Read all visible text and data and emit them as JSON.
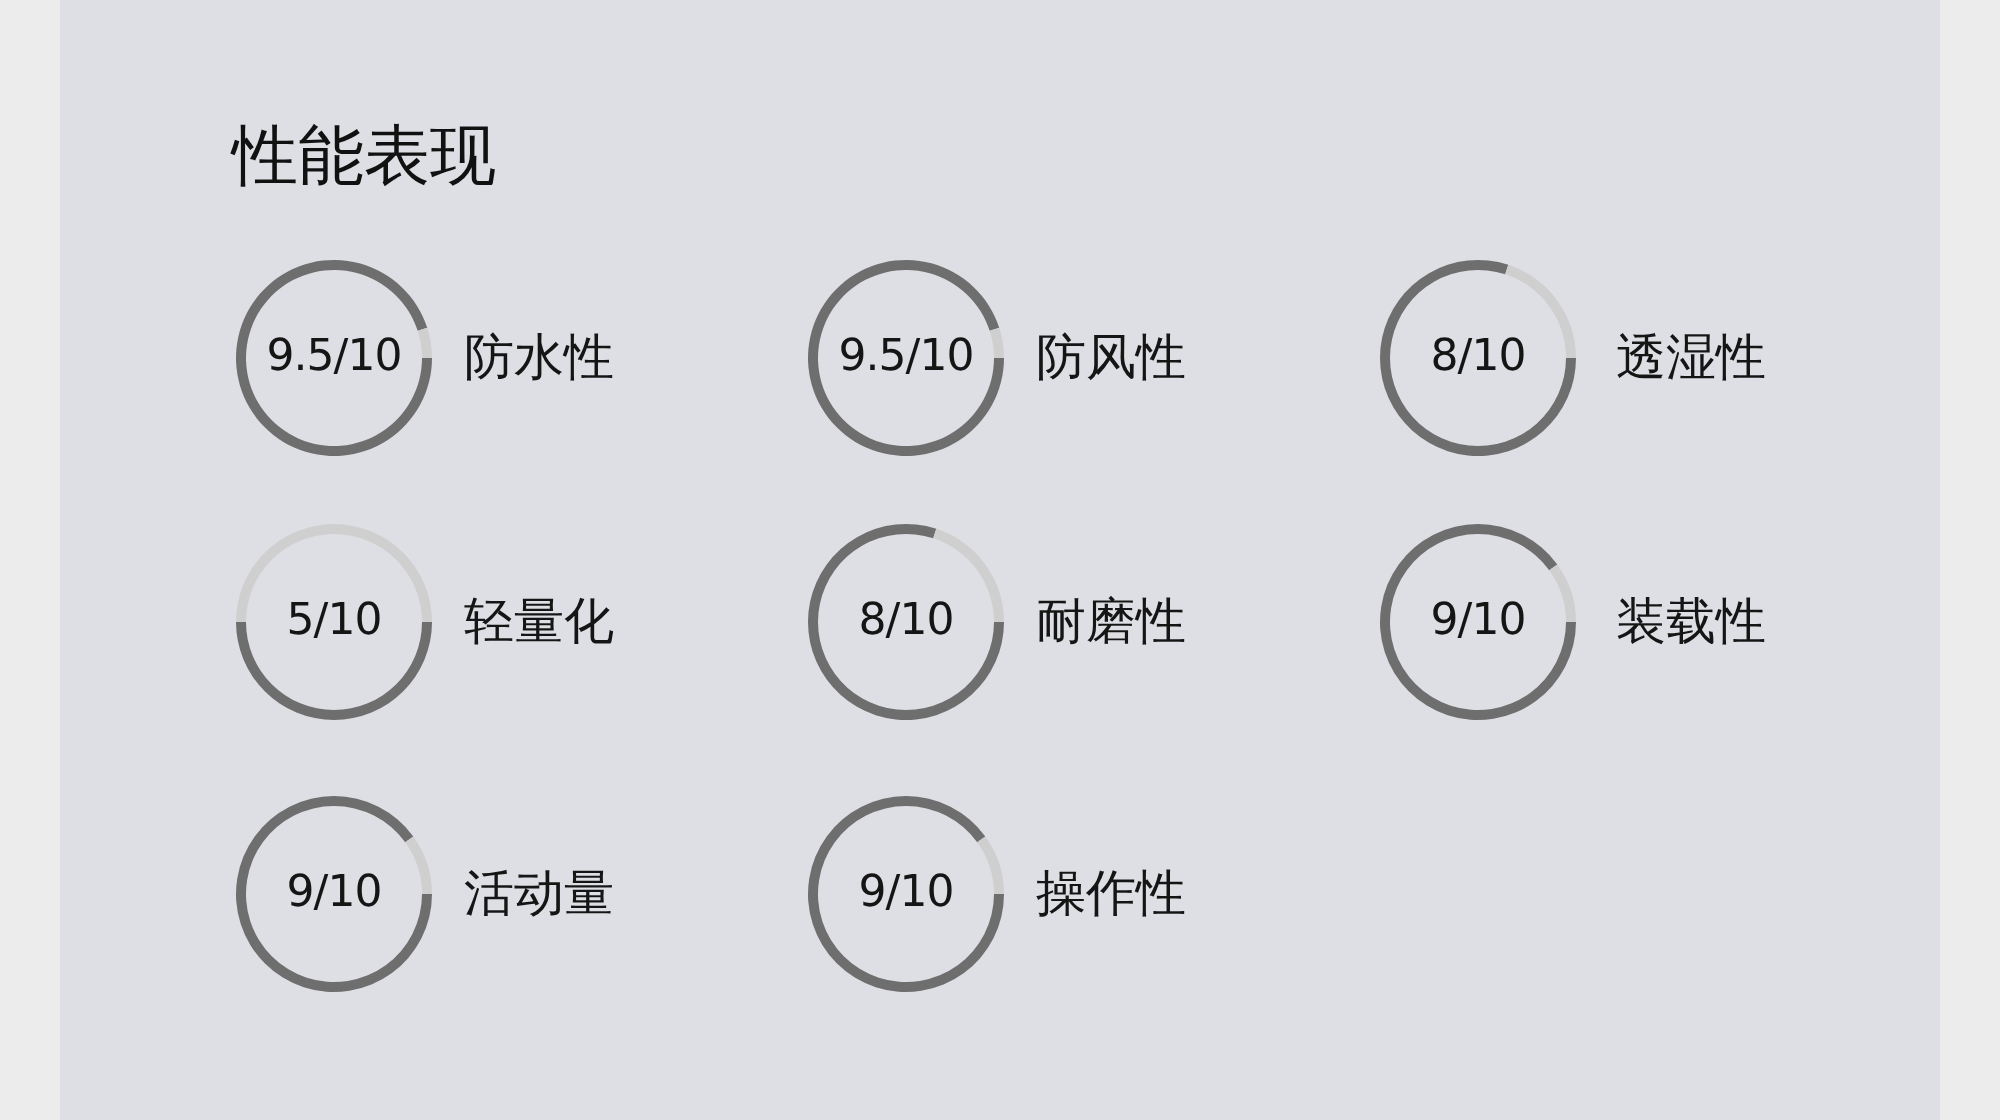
{
  "chart_data": [
    {
      "type": "other",
      "title": "性能表现"
    },
    {
      "type": "donut",
      "title": "防水性",
      "categories": [
        null,
        null
      ],
      "values": [
        95,
        5
      ],
      "colors": [
        "#6e6e6e",
        "#cfcfcf"
      ],
      "annotations": [
        "9.5/10"
      ]
    },
    {
      "type": "donut",
      "title": "防风性",
      "categories": [
        null,
        null
      ],
      "values": [
        95,
        5
      ],
      "colors": [
        "#6e6e6e",
        "#cfcfcf"
      ],
      "annotations": [
        "9.5/10"
      ]
    },
    {
      "type": "donut",
      "title": "透湿性",
      "categories": [
        null,
        null
      ],
      "values": [
        80,
        20
      ],
      "colors": [
        "#6e6e6e",
        "#cfcfcf"
      ],
      "annotations": [
        "8/10"
      ]
    },
    {
      "type": "donut",
      "title": "轻量化",
      "categories": [
        null,
        null
      ],
      "values": [
        50,
        50
      ],
      "colors": [
        "#6e6e6e",
        "#cfcfcf"
      ],
      "annotations": [
        "5/10"
      ]
    },
    {
      "type": "donut",
      "title": "耐磨性",
      "categories": [
        null,
        null
      ],
      "values": [
        80,
        20
      ],
      "colors": [
        "#6e6e6e",
        "#cfcfcf"
      ],
      "annotations": [
        "8/10"
      ]
    },
    {
      "type": "donut",
      "title": "装载性",
      "categories": [
        null,
        null
      ],
      "values": [
        90,
        10
      ],
      "colors": [
        "#6e6e6e",
        "#cfcfcf"
      ],
      "annotations": [
        "9/10"
      ]
    },
    {
      "type": "donut",
      "title": "活动量",
      "categories": [
        null,
        null
      ],
      "values": [
        90,
        10
      ],
      "colors": [
        "#6e6e6e",
        "#cfcfcf"
      ],
      "annotations": [
        "9/10"
      ]
    },
    {
      "type": "donut",
      "title": "操作性",
      "categories": [
        null,
        null
      ],
      "values": [
        90,
        10
      ],
      "colors": [
        "#6e6e6e",
        "#cfcfcf"
      ],
      "annotations": [
        "9/10"
      ]
    }
  ]
}
